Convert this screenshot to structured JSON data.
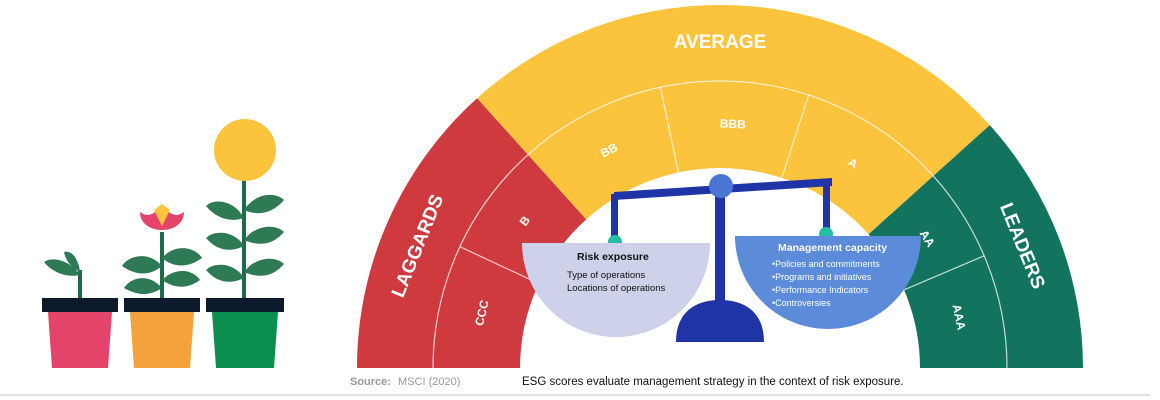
{
  "arc": {
    "sections": [
      {
        "label": "LAGGARDS",
        "color": "#cf3a3f"
      },
      {
        "label": "AVERAGE",
        "color": "#fcc33d"
      },
      {
        "label": "LEADERS",
        "color": "#12735f"
      }
    ],
    "ratings": [
      "CCC",
      "B",
      "BB",
      "BBB",
      "A",
      "AA",
      "AAA"
    ]
  },
  "scale": {
    "left_pan": {
      "title": "Risk exposure",
      "items": [
        "Type of operations",
        "Locations of operations"
      ],
      "color": "#cdd1ea"
    },
    "right_pan": {
      "title": "Management capacity",
      "items": [
        "•Policies and commitments",
        "•Programs and initiatives",
        "•Performance Indicators",
        "•Controversies"
      ],
      "color": "#5b8bd9"
    },
    "beam_color": "#1f34a7",
    "pivot_color": "#4a76d4",
    "hook_color": "#26bca6"
  },
  "plants": [
    {
      "name": "sprout",
      "pot_color": "#e4446a"
    },
    {
      "name": "bud",
      "pot_color": "#f3a23c"
    },
    {
      "name": "sunflower",
      "pot_color": "#0b8f4f"
    }
  ],
  "source": {
    "label": "Source:",
    "text": "MSCI (2020)"
  },
  "caption": "ESG scores evaluate management strategy in the context of risk exposure."
}
